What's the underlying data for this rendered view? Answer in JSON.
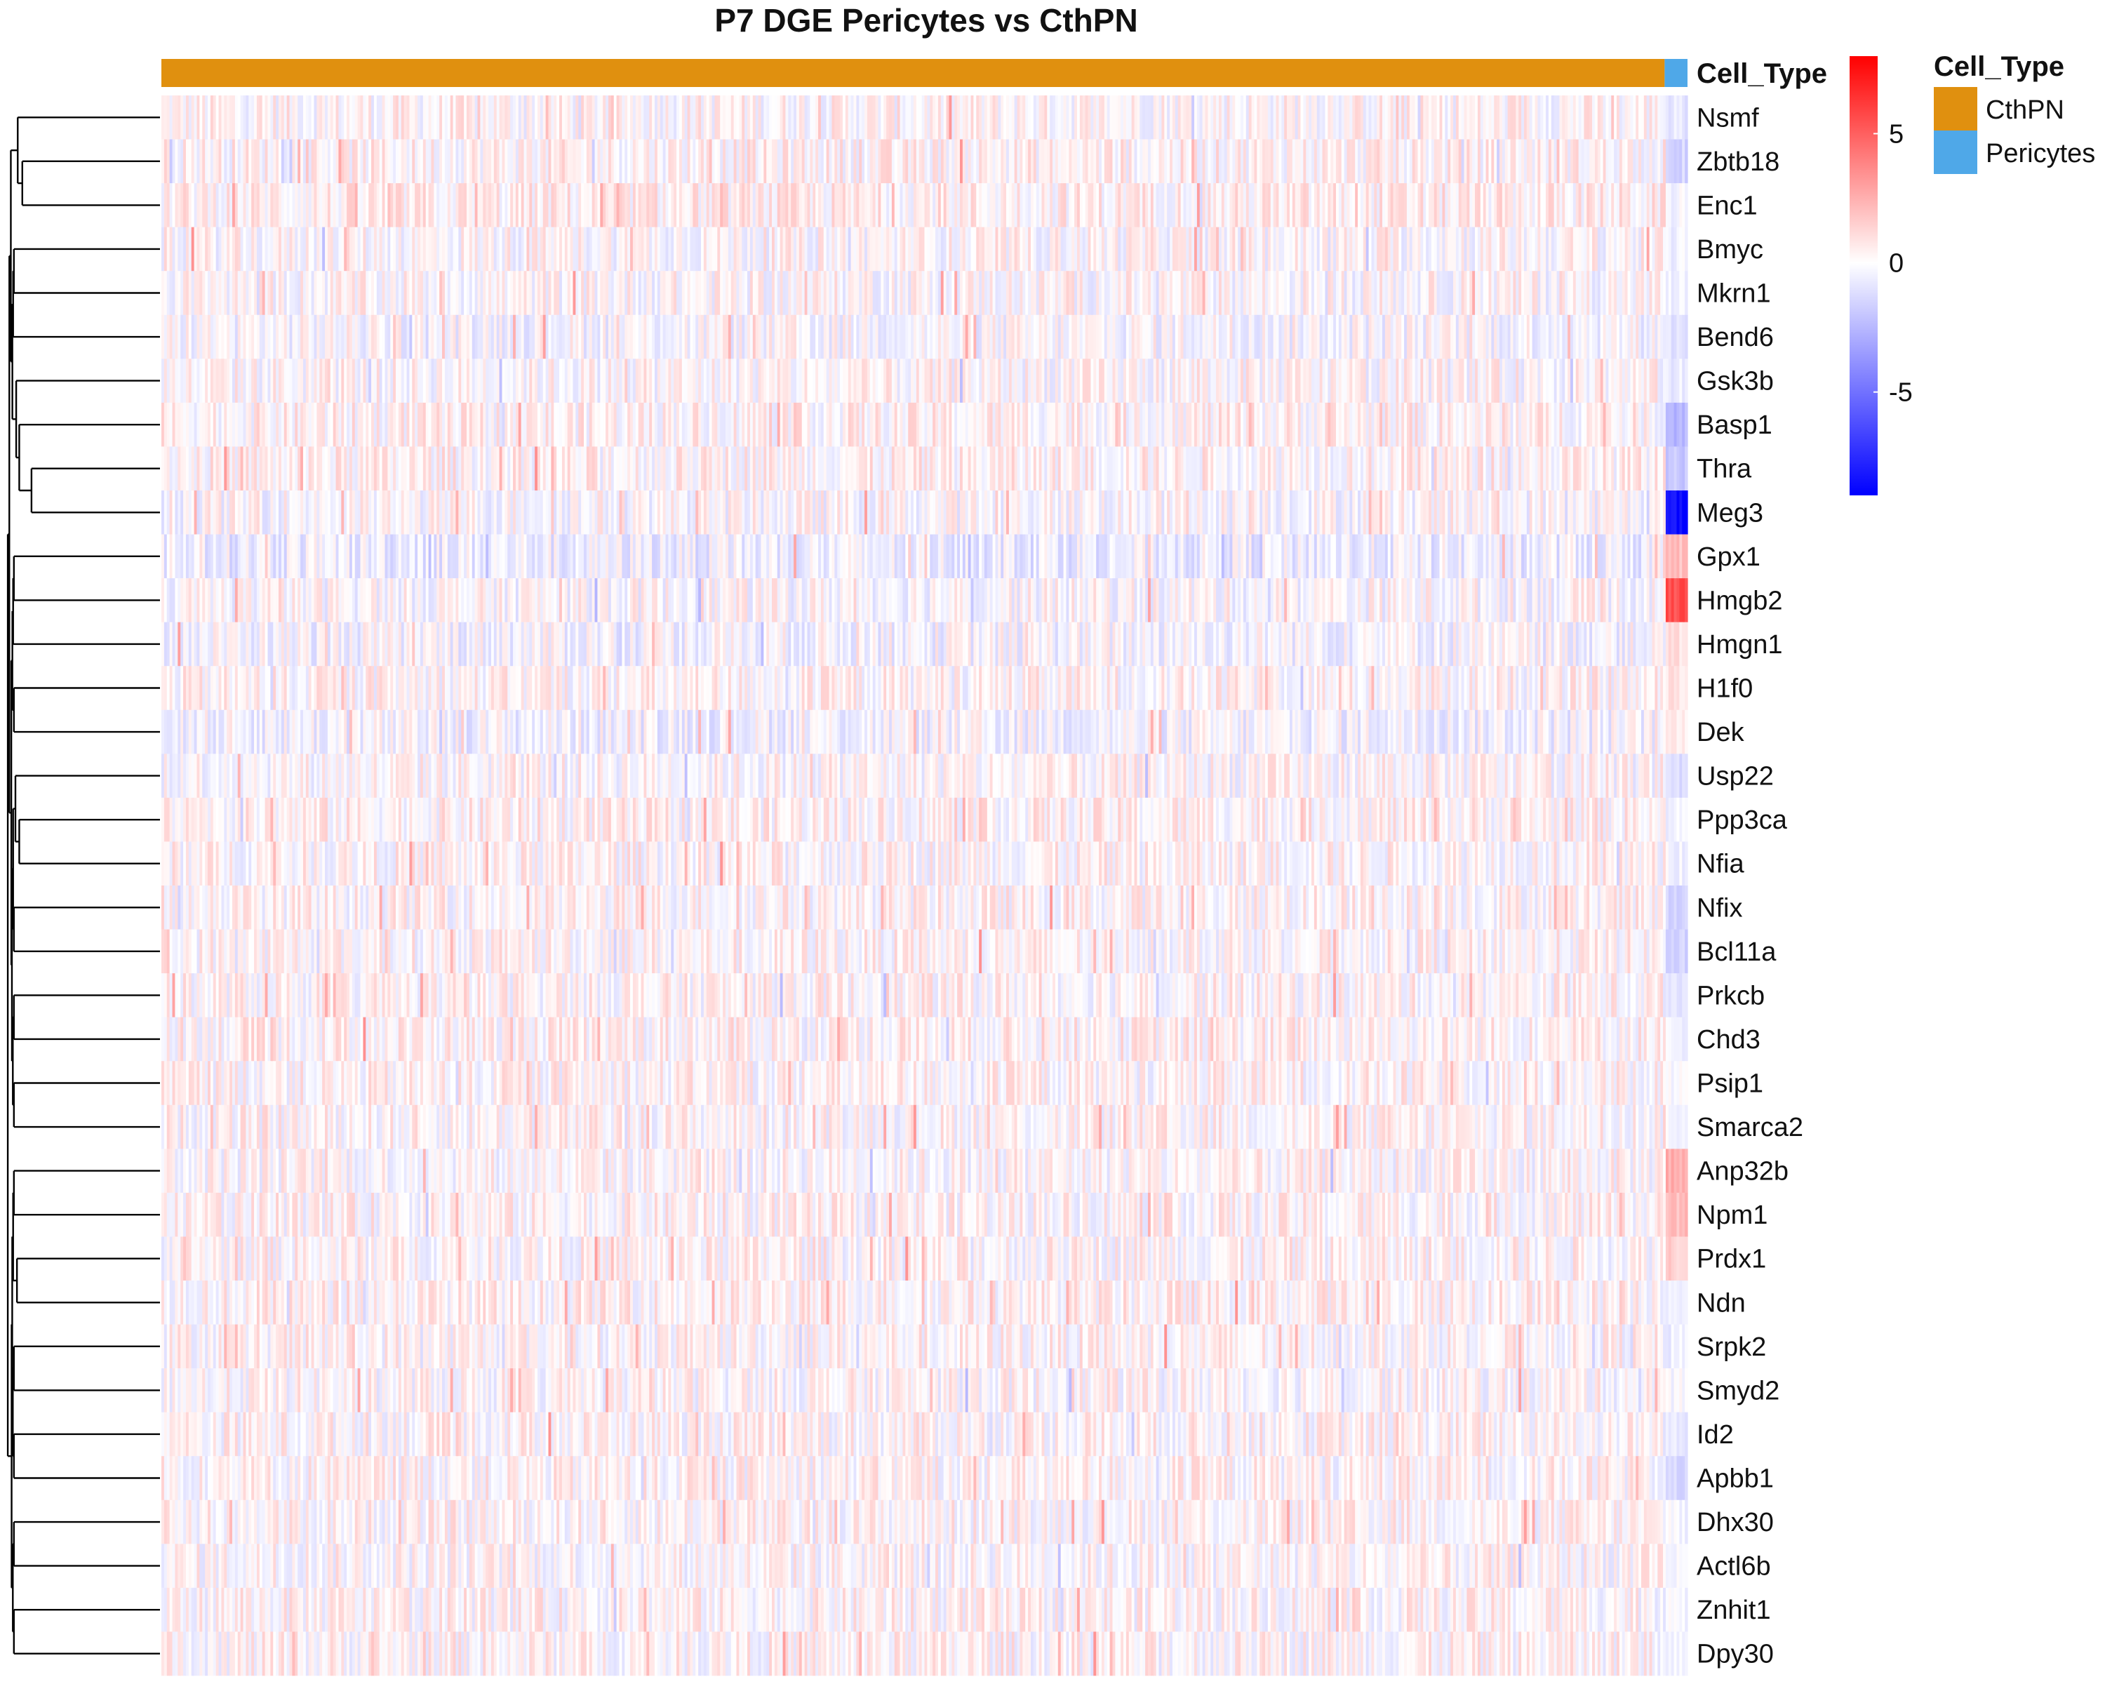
{
  "colors": {
    "cthpn": "#E0900F",
    "pericytes": "#4FA8E8",
    "low": "#0000FF",
    "mid": "#FFFFFF",
    "high": "#FF0000"
  },
  "chart_data": {
    "type": "heatmap",
    "title": "P7 DGE Pericytes vs CthPN",
    "rows": [
      "Nsmf",
      "Zbtb18",
      "Enc1",
      "Bmyc",
      "Mkrn1",
      "Bend6",
      "Gsk3b",
      "Basp1",
      "Thra",
      "Meg3",
      "Gpx1",
      "Hmgb2",
      "Hmgn1",
      "H1f0",
      "Dek",
      "Usp22",
      "Ppp3ca",
      "Nfia",
      "Nfix",
      "Bcl11a",
      "Prkcb",
      "Chd3",
      "Psip1",
      "Smarca2",
      "Anp32b",
      "Npm1",
      "Prdx1",
      "Ndn",
      "Srpk2",
      "Smyd2",
      "Id2",
      "Apbb1",
      "Dhx30",
      "Actl6b",
      "Znhit1",
      "Dpy30"
    ],
    "column_annotation": {
      "title": "Cell_Type",
      "groups": [
        {
          "name": "CthPN",
          "fraction": 0.985
        },
        {
          "name": "Pericytes",
          "fraction": 0.015
        }
      ]
    },
    "color_scale": {
      "ticks": [
        5,
        0,
        -5
      ],
      "range": [
        -9,
        8
      ]
    },
    "row_dendrogram": true,
    "pericyte_row_values": [
      -0.8,
      -1.5,
      -0.3,
      -0.5,
      -0.6,
      -1.0,
      -0.7,
      -2.5,
      -2.0,
      -8.5,
      2.0,
      5.5,
      1.0,
      1.0,
      0.6,
      -1.0,
      -0.5,
      -0.4,
      -1.5,
      -1.5,
      -0.8,
      -0.6,
      -0.2,
      -0.2,
      2.5,
      2.0,
      1.5,
      -0.4,
      -0.6,
      -0.2,
      -0.8,
      -1.2,
      -0.3,
      -0.3,
      -0.2,
      -0.3
    ],
    "cthpn_row_bias": [
      0.2,
      0.3,
      0.4,
      0.1,
      0.1,
      -0.1,
      0.1,
      0.3,
      0.3,
      0.0,
      -0.5,
      0.0,
      -0.2,
      0.2,
      -0.3,
      0.1,
      0.3,
      0.2,
      0.2,
      0.2,
      0.2,
      0.3,
      0.2,
      0.2,
      0.1,
      0.2,
      0.2,
      0.3,
      0.2,
      0.1,
      0.2,
      0.2,
      0.2,
      0.1,
      0.2,
      0.2
    ]
  }
}
